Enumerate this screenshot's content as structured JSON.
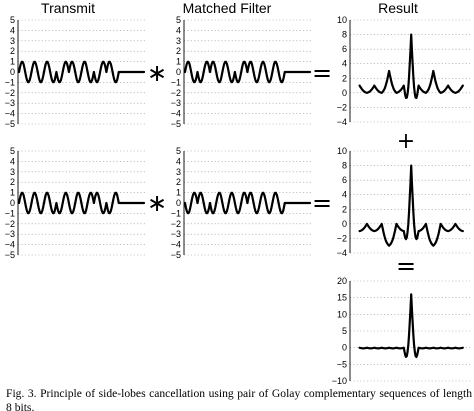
{
  "headers": {
    "transmit": "Transmit",
    "matched_filter": "Matched Filter",
    "result": "Result"
  },
  "operators": {
    "convolve": "∗",
    "equals": "=",
    "plus": "+"
  },
  "caption": "Fig. 3. Principle of side-lobes cancellation using pair of Golay complementary sequences of length 8 bits.",
  "chart_data": [
    {
      "id": "transmit-a",
      "type": "line",
      "ylim": [
        -5,
        5
      ],
      "yticks": [
        5,
        4,
        3,
        2,
        1,
        0,
        -1,
        -2,
        -3,
        -4,
        -5
      ],
      "grid": true,
      "sequence": [
        1,
        1,
        1,
        -1,
        1,
        1,
        -1,
        1
      ]
    },
    {
      "id": "matched-filter-a",
      "type": "line",
      "ylim": [
        -5,
        5
      ],
      "yticks": [
        5,
        4,
        3,
        2,
        1,
        0,
        -1,
        -2,
        -3,
        -4,
        -5
      ],
      "grid": true,
      "sequence": [
        1,
        -1,
        1,
        1,
        -1,
        1,
        1,
        1
      ]
    },
    {
      "id": "result-a",
      "type": "line",
      "ylim": [
        -4,
        10
      ],
      "yticks": [
        10,
        8,
        6,
        4,
        2,
        0,
        -2,
        -4
      ],
      "grid": true,
      "correlation": [
        1,
        0,
        1,
        0,
        3,
        0,
        1,
        8,
        1,
        0,
        3,
        0,
        1,
        0,
        1
      ]
    },
    {
      "id": "transmit-b",
      "type": "line",
      "ylim": [
        -5,
        5
      ],
      "yticks": [
        5,
        4,
        3,
        2,
        1,
        0,
        -1,
        -2,
        -3,
        -4,
        -5
      ],
      "grid": true,
      "sequence": [
        1,
        1,
        1,
        -1,
        -1,
        -1,
        1,
        -1
      ]
    },
    {
      "id": "matched-filter-b",
      "type": "line",
      "ylim": [
        -5,
        5
      ],
      "yticks": [
        5,
        4,
        3,
        2,
        1,
        0,
        -1,
        -2,
        -3,
        -4,
        -5
      ],
      "grid": true,
      "sequence": [
        -1,
        1,
        -1,
        -1,
        -1,
        1,
        1,
        1
      ]
    },
    {
      "id": "result-b",
      "type": "line",
      "ylim": [
        -4,
        10
      ],
      "yticks": [
        10,
        8,
        6,
        4,
        2,
        0,
        -2,
        -4
      ],
      "grid": true,
      "correlation": [
        -1,
        0,
        -1,
        0,
        -3,
        0,
        -1,
        8,
        -1,
        0,
        -3,
        0,
        -1,
        0,
        -1
      ]
    },
    {
      "id": "sum",
      "type": "line",
      "ylim": [
        -10,
        20
      ],
      "yticks": [
        20,
        15,
        10,
        5,
        0,
        -5,
        -10
      ],
      "grid": true,
      "correlation": [
        0,
        0,
        0,
        0,
        0,
        0,
        0,
        16,
        0,
        0,
        0,
        0,
        0,
        0,
        0
      ]
    }
  ]
}
